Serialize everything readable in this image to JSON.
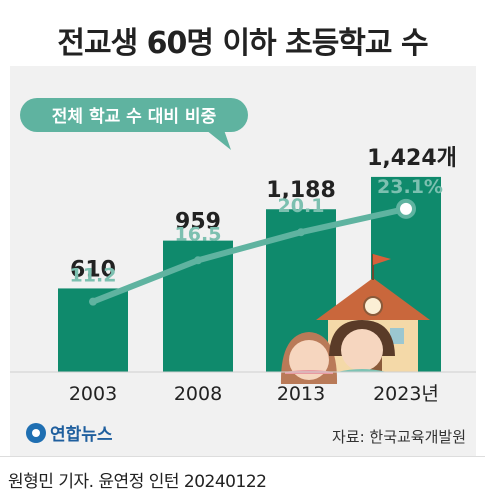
{
  "title": "전교생 60명 이하 초등학교 수",
  "legend_label": "전체 학교 수 대비 비중",
  "source": "자료: 한국교육개발원",
  "brand": "연합뉴스",
  "byline": "원형민 기자. 윤연정 인턴  20240122",
  "colors": {
    "bar": "#0f8a6c",
    "line": "#5fb3a0",
    "line_label": "#7cc0b0",
    "text": "#222222",
    "panel": "#f1f1f1"
  },
  "chart_data": {
    "type": "bar",
    "categories": [
      "2003",
      "2008",
      "2013",
      "2023년"
    ],
    "series": [
      {
        "type": "bar",
        "values": [
          610,
          959,
          1188,
          1424
        ],
        "labels": [
          "610",
          "959",
          "1,188",
          "1,424개"
        ]
      },
      {
        "type": "line",
        "name": "전체 학교 수 대비 비중",
        "unit": "%",
        "values": [
          11.2,
          16.5,
          20.1,
          23.1
        ],
        "labels": [
          "11.2",
          "16.5",
          "20.1",
          "23.1%"
        ]
      }
    ],
    "grid": false,
    "legend": "callout near line"
  }
}
